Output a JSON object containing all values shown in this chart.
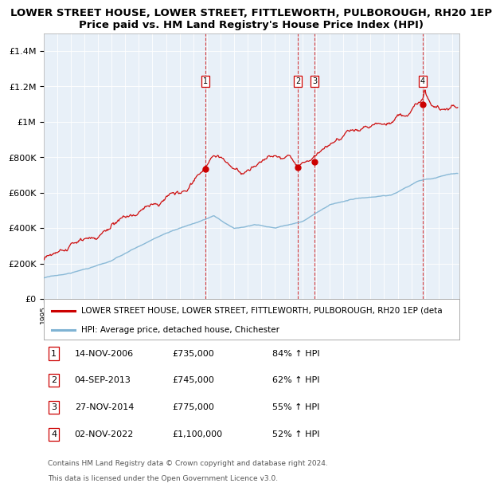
{
  "title1": "LOWER STREET HOUSE, LOWER STREET, FITTLEWORTH, PULBOROUGH, RH20 1EP",
  "title2": "Price paid vs. HM Land Registry's House Price Index (HPI)",
  "ylabel_ticks": [
    "£0",
    "£200K",
    "£400K",
    "£600K",
    "£800K",
    "£1M",
    "£1.2M",
    "£1.4M"
  ],
  "ylabel_values": [
    0,
    200000,
    400000,
    600000,
    800000,
    1000000,
    1200000,
    1400000
  ],
  "ylim": [
    0,
    1500000
  ],
  "xlim_start": 1995.0,
  "xlim_end": 2025.5,
  "sale_color": "#cc0000",
  "hpi_color": "#7fb3d3",
  "background_color": "#e8f0f8",
  "transactions": [
    {
      "num": 1,
      "date": "14-NOV-2006",
      "year": 2006.87,
      "price": 735000,
      "label": "84% ↑ HPI"
    },
    {
      "num": 2,
      "date": "04-SEP-2013",
      "year": 2013.67,
      "price": 745000,
      "label": "62% ↑ HPI"
    },
    {
      "num": 3,
      "date": "27-NOV-2014",
      "year": 2014.9,
      "price": 775000,
      "label": "55% ↑ HPI"
    },
    {
      "num": 4,
      "date": "02-NOV-2022",
      "year": 2022.83,
      "price": 1100000,
      "label": "52% ↑ HPI"
    }
  ],
  "legend_label1": "LOWER STREET HOUSE, LOWER STREET, FITTLEWORTH, PULBOROUGH, RH20 1EP (deta",
  "legend_label2": "HPI: Average price, detached house, Chichester",
  "footer1": "Contains HM Land Registry data © Crown copyright and database right 2024.",
  "footer2": "This data is licensed under the Open Government Licence v3.0.",
  "title_fontsize": 9.5,
  "subtitle_fontsize": 9.5,
  "tick_fontsize": 8,
  "legend_fontsize": 8
}
